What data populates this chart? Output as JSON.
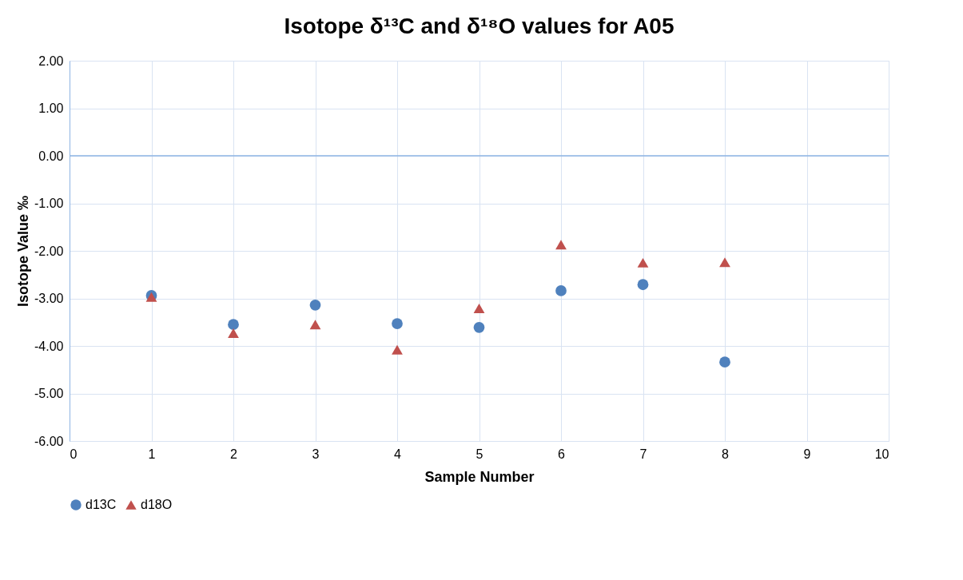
{
  "chart_data": {
    "type": "scatter",
    "title": "Isotope δ¹³C and δ¹⁸O values for A05",
    "xlabel": "Sample Number",
    "ylabel": "Isotope Value ‰",
    "x": [
      1,
      2,
      3,
      4,
      5,
      6,
      7,
      8
    ],
    "series": [
      {
        "name": "d13C",
        "color": "#4f81bd",
        "marker": "circle",
        "values": [
          -2.94,
          -3.55,
          -3.14,
          -3.53,
          -3.61,
          -2.84,
          -2.71,
          -4.34
        ]
      },
      {
        "name": "d18O",
        "color": "#c0504d",
        "marker": "triangle",
        "values": [
          -2.97,
          -3.73,
          -3.55,
          -4.08,
          -3.21,
          -1.87,
          -2.25,
          -2.24
        ]
      }
    ],
    "xlim": [
      0,
      10
    ],
    "xticks": [
      0,
      1,
      2,
      3,
      4,
      5,
      6,
      7,
      8,
      9,
      10
    ],
    "ylim": [
      -6,
      2
    ],
    "yticks": [
      {
        "value": 2,
        "label": "2.00"
      },
      {
        "value": 1,
        "label": "1.00"
      },
      {
        "value": 0,
        "label": "0.00"
      },
      {
        "value": -1,
        "label": "-1.00"
      },
      {
        "value": -2,
        "label": "-2.00"
      },
      {
        "value": -3,
        "label": "-3.00"
      },
      {
        "value": -4,
        "label": "-4.00"
      },
      {
        "value": -5,
        "label": "-5.00"
      },
      {
        "value": -6,
        "label": "-6.00"
      }
    ],
    "ref_lines": [
      {
        "axis": "y",
        "value": 0,
        "color": "#8eb4e3"
      }
    ],
    "grid": true,
    "legend": "bottom"
  }
}
